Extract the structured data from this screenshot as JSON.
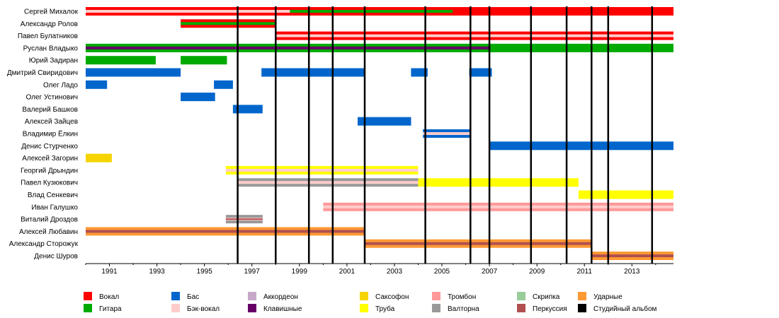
{
  "chart_data": {
    "type": "timeline",
    "title": "",
    "xlabel": "",
    "ylabel": "",
    "xlim": [
      1990.0,
      2014.75
    ],
    "x_ticks": [
      "1991",
      "1993",
      "1995",
      "1997",
      "1999",
      "2001",
      "2003",
      "2005",
      "2007",
      "2009",
      "2011",
      "2013"
    ],
    "grid": true,
    "legend_position": "bottom",
    "roles": [
      {
        "key": "vocal",
        "label": "Вокал",
        "color": "#ff0000"
      },
      {
        "key": "guitar",
        "label": "Гитара",
        "color": "#00aa00"
      },
      {
        "key": "bass",
        "label": "Бас",
        "color": "#0066cc"
      },
      {
        "key": "backing_vocal",
        "label": "Бэк-вокал",
        "color": "#ffcccc"
      },
      {
        "key": "accordion",
        "label": "Аккордеон",
        "color": "#c8a8c8"
      },
      {
        "key": "keys",
        "label": "Клавишные",
        "color": "#660066"
      },
      {
        "key": "sax",
        "label": "Саксофон",
        "color": "#f5d400"
      },
      {
        "key": "trumpet",
        "label": "Труба",
        "color": "#ffff00"
      },
      {
        "key": "trombone",
        "label": "Тромбон",
        "color": "#ff9999"
      },
      {
        "key": "horn",
        "label": "Валторна",
        "color": "#999999"
      },
      {
        "key": "violin",
        "label": "Скрипка",
        "color": "#99cc99"
      },
      {
        "key": "percussion",
        "label": "Перкуссия",
        "color": "#b05050"
      },
      {
        "key": "drums",
        "label": "Ударные",
        "color": "#ff9933"
      },
      {
        "key": "album",
        "label": "Студийный альбом",
        "color": "#000000"
      }
    ],
    "albums": [
      1996.4,
      1998.0,
      1999.4,
      2000.4,
      2001.75,
      2004.3,
      2006.2,
      2007.0,
      2008.75,
      2010.25,
      2011.3,
      2012.0,
      2013.85
    ],
    "members": [
      {
        "name": "Сергей Михалок",
        "bars": [
          {
            "start": 1990.0,
            "end": 2014.75,
            "role": "vocal",
            "style": "full"
          },
          {
            "start": 1990.0,
            "end": 1998.6,
            "role": "backing_vocal",
            "style": "stripe"
          },
          {
            "start": 1998.6,
            "end": 2005.45,
            "role": "guitar",
            "style": "stripe"
          }
        ]
      },
      {
        "name": "Александр Ролов",
        "bars": [
          {
            "start": 1994.0,
            "end": 1998.0,
            "role": "vocal",
            "style": "full"
          },
          {
            "start": 1994.0,
            "end": 1998.0,
            "role": "guitar",
            "style": "stripe"
          }
        ]
      },
      {
        "name": "Павел Булатников",
        "bars": [
          {
            "start": 1998.0,
            "end": 2014.75,
            "role": "vocal",
            "style": "full"
          },
          {
            "start": 1998.0,
            "end": 2014.75,
            "role": "backing_vocal",
            "style": "stripe"
          }
        ]
      },
      {
        "name": "Руслан Владыко",
        "bars": [
          {
            "start": 1990.0,
            "end": 2014.75,
            "role": "guitar",
            "style": "full"
          },
          {
            "start": 1990.0,
            "end": 2007.0,
            "role": "keys",
            "style": "stripe"
          }
        ]
      },
      {
        "name": "Юрий Задиран",
        "bars": [
          {
            "start": 1990.0,
            "end": 1992.95,
            "role": "guitar",
            "style": "full"
          },
          {
            "start": 1994.0,
            "end": 1995.95,
            "role": "guitar",
            "style": "full"
          }
        ]
      },
      {
        "name": "Дмитрий Свиридович",
        "bars": [
          {
            "start": 1990.0,
            "end": 1994.0,
            "role": "bass",
            "style": "full"
          },
          {
            "start": 1997.4,
            "end": 2001.75,
            "role": "bass",
            "style": "full"
          },
          {
            "start": 2003.7,
            "end": 2004.4,
            "role": "bass",
            "style": "full"
          },
          {
            "start": 2006.15,
            "end": 2007.1,
            "role": "bass",
            "style": "full"
          }
        ]
      },
      {
        "name": "Олег Ладо",
        "bars": [
          {
            "start": 1990.0,
            "end": 1990.9,
            "role": "bass",
            "style": "full"
          },
          {
            "start": 1995.4,
            "end": 1996.2,
            "role": "bass",
            "style": "full"
          }
        ]
      },
      {
        "name": "Олег Устинович",
        "bars": [
          {
            "start": 1994.0,
            "end": 1995.45,
            "role": "bass",
            "style": "full"
          }
        ]
      },
      {
        "name": "Валерий Башков",
        "bars": [
          {
            "start": 1996.2,
            "end": 1997.45,
            "role": "bass",
            "style": "full"
          }
        ]
      },
      {
        "name": "Алексей Зайцев",
        "bars": [
          {
            "start": 2001.45,
            "end": 2003.7,
            "role": "bass",
            "style": "full"
          }
        ]
      },
      {
        "name": "Владимир Ёлкин",
        "bars": [
          {
            "start": 2004.2,
            "end": 2006.2,
            "role": "bass",
            "style": "full"
          },
          {
            "start": 2004.2,
            "end": 2006.2,
            "role": "backing_vocal",
            "style": "stripe"
          }
        ]
      },
      {
        "name": "Денис Стурченко",
        "bars": [
          {
            "start": 2007.0,
            "end": 2014.75,
            "role": "bass",
            "style": "full"
          }
        ]
      },
      {
        "name": "Алексей Загорин",
        "bars": [
          {
            "start": 1990.0,
            "end": 1991.1,
            "role": "sax",
            "style": "full"
          }
        ]
      },
      {
        "name": "Георгий Дрындин",
        "bars": [
          {
            "start": 1995.9,
            "end": 2004.0,
            "role": "trumpet",
            "style": "full"
          },
          {
            "start": 1995.9,
            "end": 2004.0,
            "role": "backing_vocal",
            "style": "stripe"
          }
        ]
      },
      {
        "name": "Павел Кузюкович",
        "bars": [
          {
            "start": 1996.4,
            "end": 2004.0,
            "role": "horn",
            "style": "full"
          },
          {
            "start": 1996.4,
            "end": 2004.0,
            "role": "backing_vocal",
            "style": "stripe"
          },
          {
            "start": 2004.0,
            "end": 2010.75,
            "role": "trumpet",
            "style": "full"
          }
        ]
      },
      {
        "name": "Влад Сенкевич",
        "bars": [
          {
            "start": 2010.75,
            "end": 2014.75,
            "role": "trumpet",
            "style": "full"
          }
        ]
      },
      {
        "name": "Иван Галушко",
        "bars": [
          {
            "start": 2000.0,
            "end": 2014.75,
            "role": "trombone",
            "style": "full"
          },
          {
            "start": 2000.0,
            "end": 2014.75,
            "role": "backing_vocal",
            "style": "stripe"
          }
        ]
      },
      {
        "name": "Виталий Дроздов",
        "bars": [
          {
            "start": 1995.9,
            "end": 1997.45,
            "role": "horn",
            "style": "full"
          },
          {
            "start": 1995.9,
            "end": 1997.45,
            "role": "backing_vocal",
            "style": "stripe"
          },
          {
            "start": 1995.9,
            "end": 1997.45,
            "role": "percussion",
            "style": "thin"
          }
        ]
      },
      {
        "name": "Алексей Любавин",
        "bars": [
          {
            "start": 1990.0,
            "end": 2001.75,
            "role": "drums",
            "style": "full"
          },
          {
            "start": 1990.0,
            "end": 2001.75,
            "role": "percussion",
            "style": "stripe"
          }
        ]
      },
      {
        "name": "Александр Сторожук",
        "bars": [
          {
            "start": 2001.75,
            "end": 2011.3,
            "role": "drums",
            "style": "full"
          },
          {
            "start": 2001.75,
            "end": 2011.3,
            "role": "percussion",
            "style": "stripe"
          }
        ]
      },
      {
        "name": "Денис Шуров",
        "bars": [
          {
            "start": 2011.3,
            "end": 2014.75,
            "role": "drums",
            "style": "full"
          },
          {
            "start": 2011.3,
            "end": 2014.75,
            "role": "percussion",
            "style": "stripe"
          }
        ]
      }
    ]
  }
}
